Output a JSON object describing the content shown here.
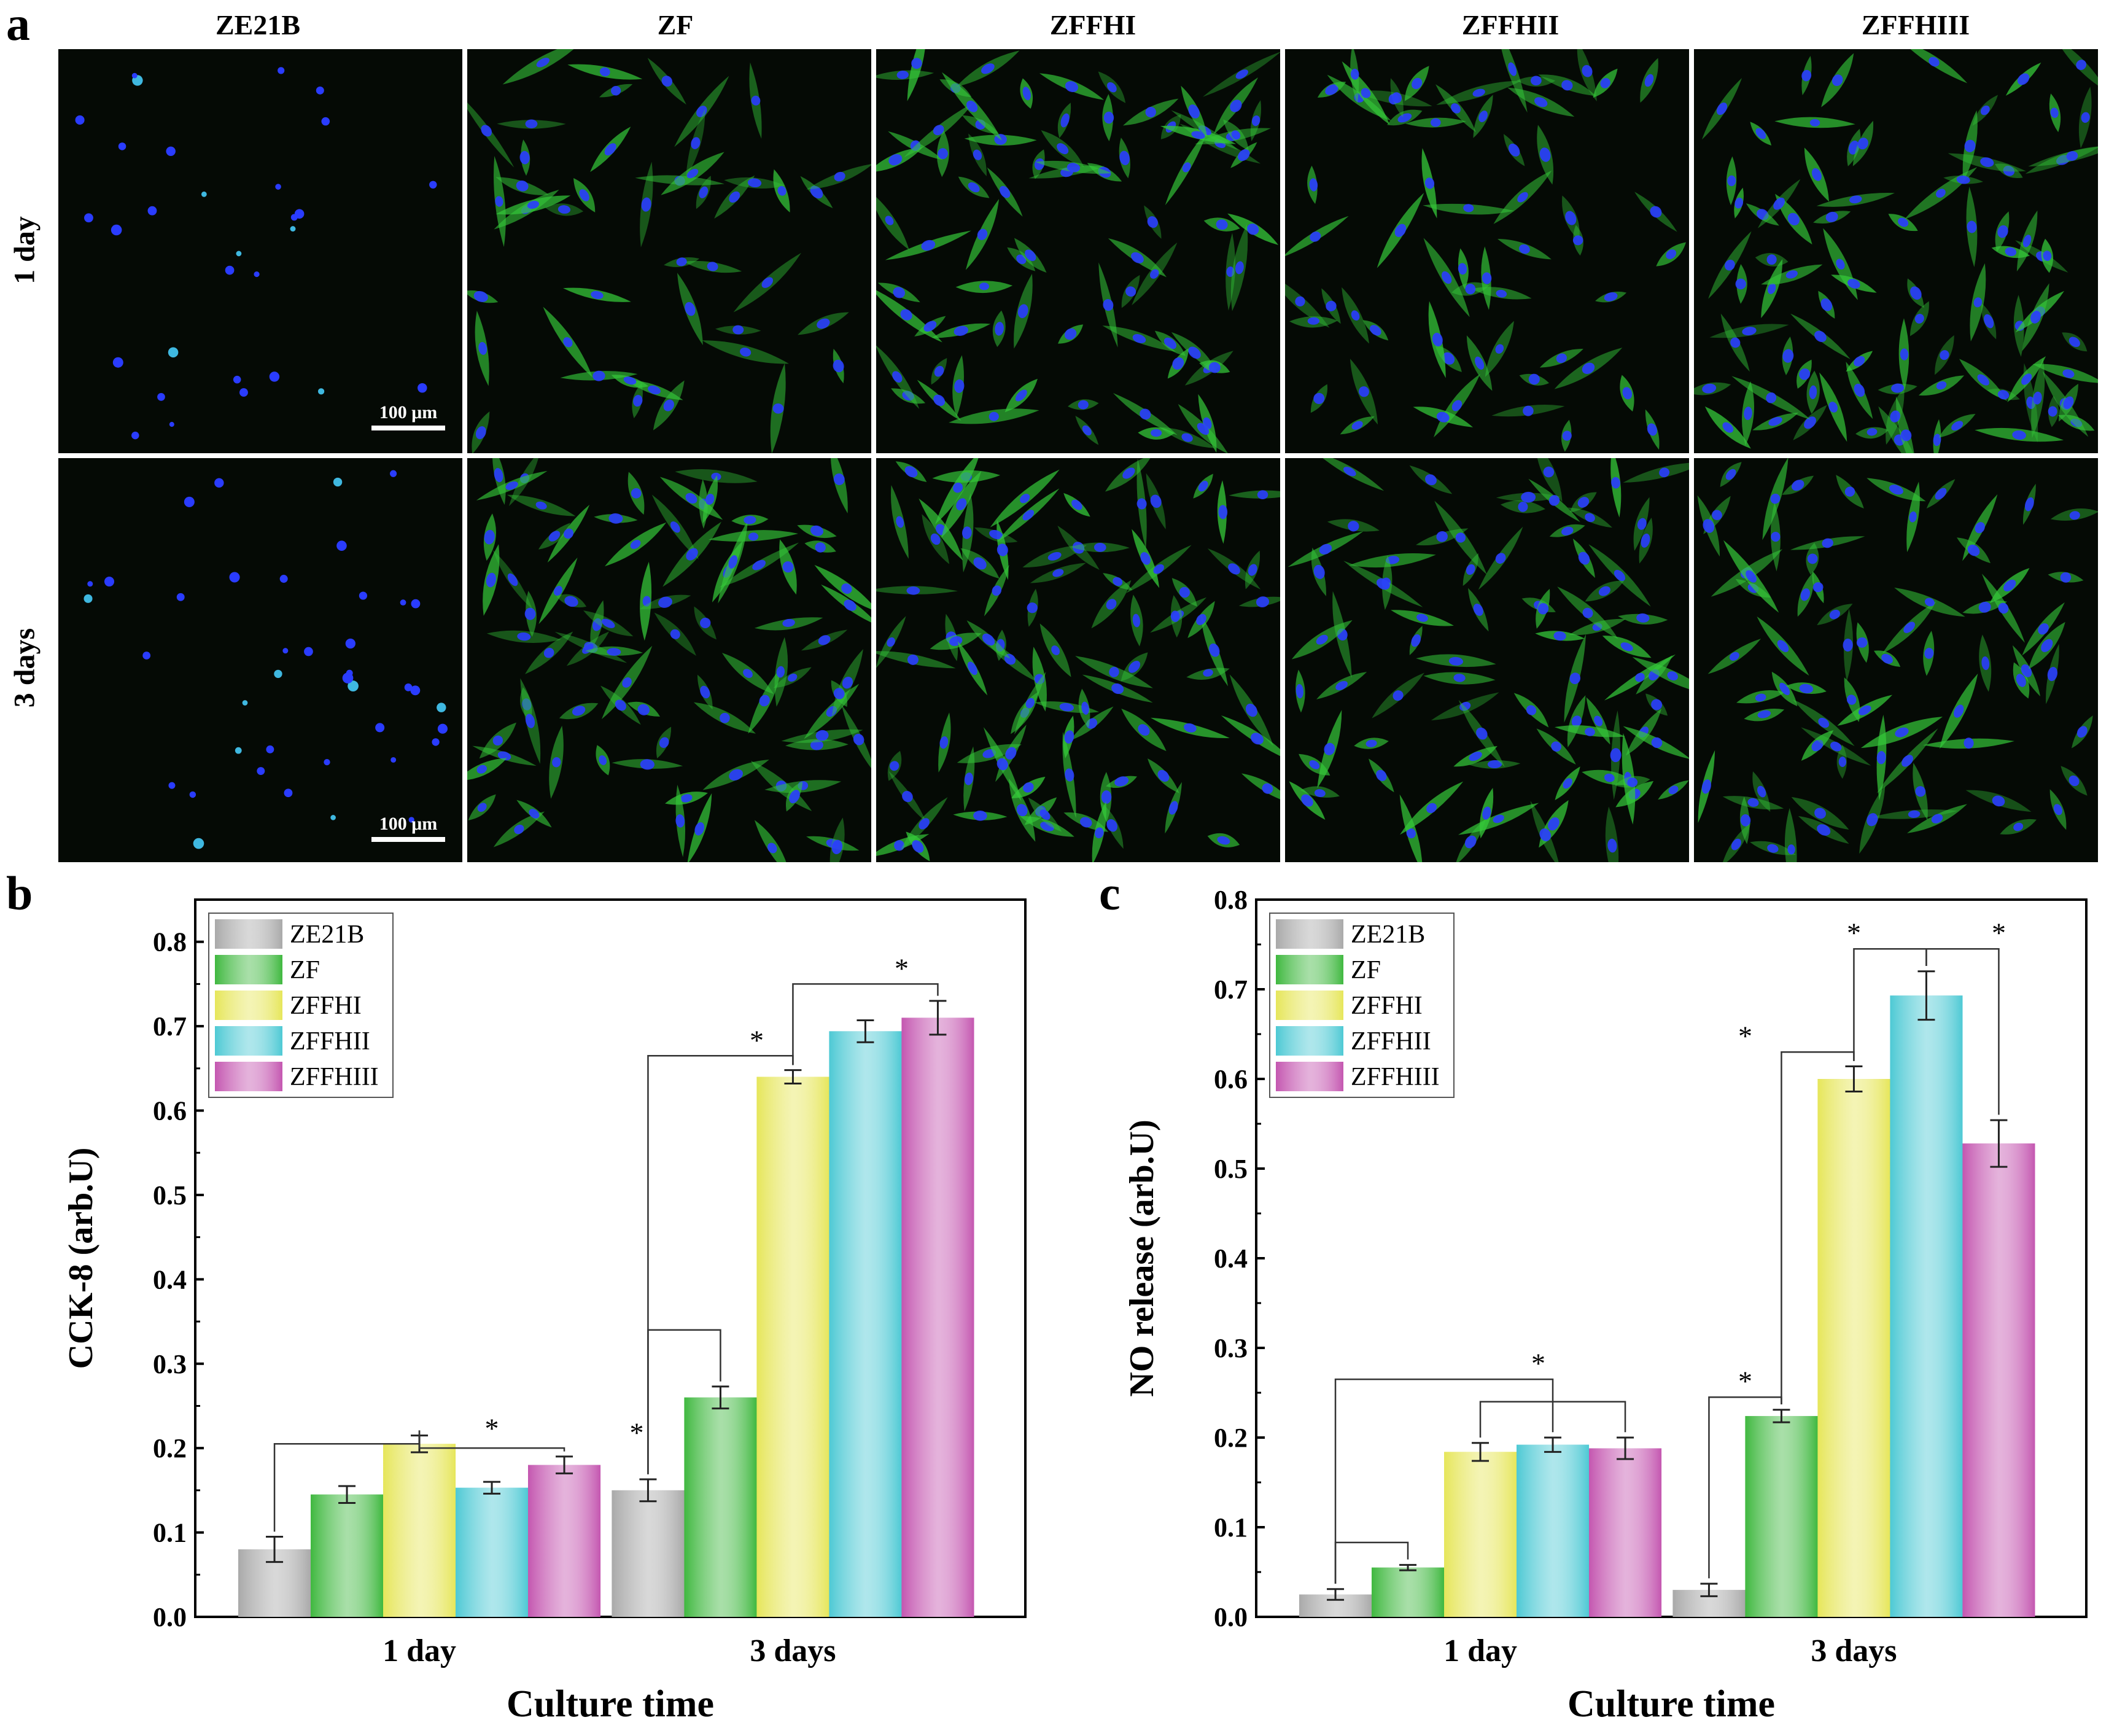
{
  "panel_a": {
    "letter": "a",
    "columns": [
      "ZE21B",
      "ZF",
      "ZFFHI",
      "ZFFHII",
      "ZFFHIII"
    ],
    "rows": [
      "1 day",
      "3 days"
    ],
    "scale_bar": "100 μm",
    "colors": {
      "nuclei": "#2a3cff",
      "actin": "#35c93a",
      "background": "#050a05"
    }
  },
  "chart_data": [
    {
      "panel": "b",
      "type": "bar",
      "categories": [
        "1 day",
        "3 days"
      ],
      "series": [
        {
          "name": "ZE21B",
          "values": [
            0.08,
            0.15
          ],
          "errors": [
            0.015,
            0.013
          ],
          "color": "#a9a9a9"
        },
        {
          "name": "ZF",
          "values": [
            0.145,
            0.26
          ],
          "errors": [
            0.01,
            0.013
          ],
          "color": "#3fb83f"
        },
        {
          "name": "ZFFHI",
          "values": [
            0.205,
            0.64
          ],
          "errors": [
            0.01,
            0.008
          ],
          "color": "#e6e65a"
        },
        {
          "name": "ZFFHII",
          "values": [
            0.153,
            0.694
          ],
          "errors": [
            0.007,
            0.013
          ],
          "color": "#4dc9d4"
        },
        {
          "name": "ZFFHIII",
          "values": [
            0.18,
            0.71
          ],
          "errors": [
            0.01,
            0.02
          ],
          "color": "#c456b0"
        }
      ],
      "xlabel": "Culture time",
      "ylabel": "CCK-8 (arb.U)",
      "ylim": [
        0,
        0.85
      ],
      "yticks": [
        "0.0",
        "0.1",
        "0.2",
        "0.3",
        "0.4",
        "0.5",
        "0.6",
        "0.7",
        "0.8"
      ],
      "legend": "top-left",
      "annotations": [
        "*",
        "*",
        "*",
        "*"
      ]
    },
    {
      "panel": "c",
      "type": "bar",
      "categories": [
        "1 day",
        "3 days"
      ],
      "series": [
        {
          "name": "ZE21B",
          "values": [
            0.025,
            0.03
          ],
          "errors": [
            0.006,
            0.007
          ],
          "color": "#a9a9a9"
        },
        {
          "name": "ZF",
          "values": [
            0.055,
            0.224
          ],
          "errors": [
            0.003,
            0.007
          ],
          "color": "#3fb83f"
        },
        {
          "name": "ZFFHI",
          "values": [
            0.184,
            0.6
          ],
          "errors": [
            0.01,
            0.014
          ],
          "color": "#e6e65a"
        },
        {
          "name": "ZFFHII",
          "values": [
            0.192,
            0.693
          ],
          "errors": [
            0.008,
            0.027
          ],
          "color": "#4dc9d4"
        },
        {
          "name": "ZFFHIII",
          "values": [
            0.188,
            0.528
          ],
          "errors": [
            0.012,
            0.026
          ],
          "color": "#c456b0"
        }
      ],
      "xlabel": "Culture time",
      "ylabel": "NO release (arb.U)",
      "ylim": [
        0,
        0.8
      ],
      "yticks": [
        "0.0",
        "0.1",
        "0.2",
        "0.3",
        "0.4",
        "0.5",
        "0.6",
        "0.7",
        "0.8"
      ],
      "legend": "top-left",
      "annotations": [
        "*",
        "*",
        "*",
        "*",
        "*"
      ]
    }
  ]
}
